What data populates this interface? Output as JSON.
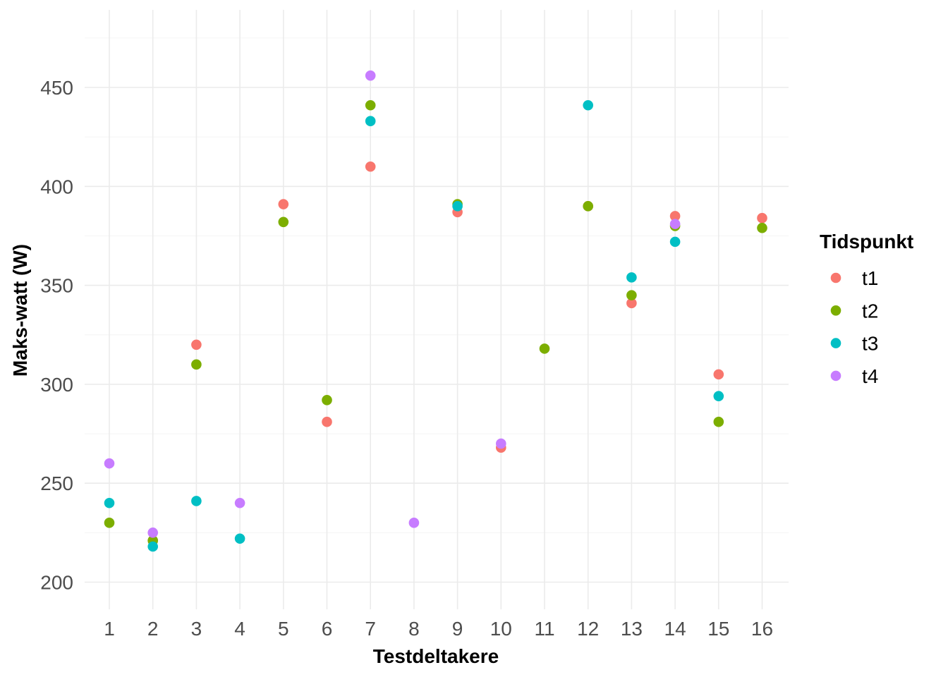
{
  "chart_data": {
    "type": "scatter",
    "xlabel": "Testdeltakere",
    "ylabel": "Maks-watt (W)",
    "x_categories": [
      "1",
      "2",
      "3",
      "4",
      "5",
      "6",
      "7",
      "8",
      "9",
      "10",
      "11",
      "12",
      "13",
      "14",
      "15",
      "16"
    ],
    "ylim": [
      187,
      475
    ],
    "yticks": [
      200,
      250,
      300,
      350,
      400,
      450
    ],
    "grid": true,
    "legend": {
      "title": "Tidspunkt",
      "position": "right"
    },
    "series": [
      {
        "name": "t1",
        "color": "#F8766D",
        "points": [
          {
            "x": "2",
            "y": 221
          },
          {
            "x": "3",
            "y": 320
          },
          {
            "x": "5",
            "y": 391
          },
          {
            "x": "6",
            "y": 281
          },
          {
            "x": "7",
            "y": 410
          },
          {
            "x": "9",
            "y": 387
          },
          {
            "x": "10",
            "y": 268
          },
          {
            "x": "12",
            "y": 390
          },
          {
            "x": "13",
            "y": 341
          },
          {
            "x": "14",
            "y": 385
          },
          {
            "x": "15",
            "y": 305
          },
          {
            "x": "16",
            "y": 384
          }
        ]
      },
      {
        "name": "t2",
        "color": "#7CAE00",
        "points": [
          {
            "x": "1",
            "y": 230
          },
          {
            "x": "2",
            "y": 221
          },
          {
            "x": "3",
            "y": 310
          },
          {
            "x": "5",
            "y": 382
          },
          {
            "x": "6",
            "y": 292
          },
          {
            "x": "7",
            "y": 441
          },
          {
            "x": "9",
            "y": 391
          },
          {
            "x": "11",
            "y": 318
          },
          {
            "x": "12",
            "y": 390
          },
          {
            "x": "13",
            "y": 345
          },
          {
            "x": "14",
            "y": 380
          },
          {
            "x": "15",
            "y": 281
          },
          {
            "x": "16",
            "y": 379
          }
        ]
      },
      {
        "name": "t3",
        "color": "#00BFC4",
        "points": [
          {
            "x": "1",
            "y": 240
          },
          {
            "x": "2",
            "y": 218
          },
          {
            "x": "3",
            "y": 241
          },
          {
            "x": "4",
            "y": 222
          },
          {
            "x": "7",
            "y": 433
          },
          {
            "x": "9",
            "y": 390
          },
          {
            "x": "12",
            "y": 441
          },
          {
            "x": "13",
            "y": 354
          },
          {
            "x": "14",
            "y": 372
          },
          {
            "x": "15",
            "y": 294
          }
        ]
      },
      {
        "name": "t4",
        "color": "#C77CFF",
        "points": [
          {
            "x": "1",
            "y": 260
          },
          {
            "x": "2",
            "y": 225
          },
          {
            "x": "4",
            "y": 240
          },
          {
            "x": "7",
            "y": 456
          },
          {
            "x": "8",
            "y": 230
          },
          {
            "x": "10",
            "y": 270
          },
          {
            "x": "14",
            "y": 381
          }
        ]
      }
    ]
  }
}
